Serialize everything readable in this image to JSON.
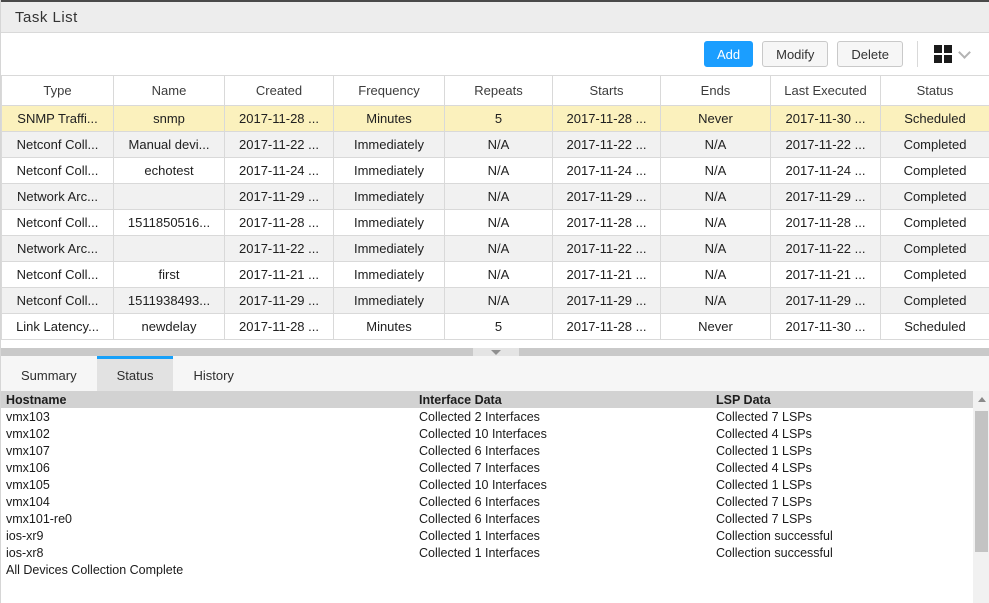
{
  "panel": {
    "title": "Task List"
  },
  "toolbar": {
    "add_label": "Add",
    "modify_label": "Modify",
    "delete_label": "Delete"
  },
  "task_table": {
    "columns": [
      "Type",
      "Name",
      "Created",
      "Frequency",
      "Repeats",
      "Starts",
      "Ends",
      "Last Executed",
      "Status"
    ],
    "rows": [
      {
        "selected": true,
        "cells": [
          "SNMP Traffi...",
          "snmp",
          "2017-11-28 ...",
          "Minutes",
          "5",
          "2017-11-28 ...",
          "Never",
          "2017-11-30 ...",
          "Scheduled"
        ]
      },
      {
        "selected": false,
        "cells": [
          "Netconf Coll...",
          "Manual devi...",
          "2017-11-22 ...",
          "Immediately",
          "N/A",
          "2017-11-22 ...",
          "N/A",
          "2017-11-22 ...",
          "Completed"
        ]
      },
      {
        "selected": false,
        "cells": [
          "Netconf Coll...",
          "echotest",
          "2017-11-24 ...",
          "Immediately",
          "N/A",
          "2017-11-24 ...",
          "N/A",
          "2017-11-24 ...",
          "Completed"
        ]
      },
      {
        "selected": false,
        "cells": [
          "Network Arc...",
          "",
          "2017-11-29 ...",
          "Immediately",
          "N/A",
          "2017-11-29 ...",
          "N/A",
          "2017-11-29 ...",
          "Completed"
        ]
      },
      {
        "selected": false,
        "cells": [
          "Netconf Coll...",
          "1511850516...",
          "2017-11-28 ...",
          "Immediately",
          "N/A",
          "2017-11-28 ...",
          "N/A",
          "2017-11-28 ...",
          "Completed"
        ]
      },
      {
        "selected": false,
        "cells": [
          "Network Arc...",
          "",
          "2017-11-22 ...",
          "Immediately",
          "N/A",
          "2017-11-22 ...",
          "N/A",
          "2017-11-22 ...",
          "Completed"
        ]
      },
      {
        "selected": false,
        "cells": [
          "Netconf Coll...",
          "first",
          "2017-11-21 ...",
          "Immediately",
          "N/A",
          "2017-11-21 ...",
          "N/A",
          "2017-11-21 ...",
          "Completed"
        ]
      },
      {
        "selected": false,
        "cells": [
          "Netconf Coll...",
          "1511938493...",
          "2017-11-29 ...",
          "Immediately",
          "N/A",
          "2017-11-29 ...",
          "N/A",
          "2017-11-29 ...",
          "Completed"
        ]
      },
      {
        "selected": false,
        "cells": [
          "Link Latency...",
          "newdelay",
          "2017-11-28 ...",
          "Minutes",
          "5",
          "2017-11-28 ...",
          "Never",
          "2017-11-30 ...",
          "Scheduled"
        ]
      }
    ]
  },
  "tabs": [
    {
      "label": "Summary",
      "active": false
    },
    {
      "label": "Status",
      "active": true
    },
    {
      "label": "History",
      "active": false
    }
  ],
  "status_panel": {
    "columns": [
      "Hostname",
      "Interface Data",
      "LSP Data"
    ],
    "rows": [
      [
        "vmx103",
        "Collected 2 Interfaces",
        "Collected 7 LSPs"
      ],
      [
        "vmx102",
        "Collected 10 Interfaces",
        "Collected 4 LSPs"
      ],
      [
        "vmx107",
        "Collected 6 Interfaces",
        "Collected 1 LSPs"
      ],
      [
        "vmx106",
        "Collected 7 Interfaces",
        "Collected 4 LSPs"
      ],
      [
        "vmx105",
        "Collected 10 Interfaces",
        "Collected 1 LSPs"
      ],
      [
        "vmx104",
        "Collected 6 Interfaces",
        "Collected 7 LSPs"
      ],
      [
        "vmx101-re0",
        "Collected 6 Interfaces",
        "Collected 7 LSPs"
      ],
      [
        "ios-xr9",
        "Collected 1 Interfaces",
        "Collection successful"
      ],
      [
        "ios-xr8",
        "Collected 1 Interfaces",
        "Collection successful"
      ]
    ],
    "footer": "All Devices Collection Complete"
  },
  "colors": {
    "accent_blue": "#1b9eff",
    "selected_row": "#fbf1bd",
    "row_stripe": "#f1f1f1",
    "header_gray": "#d2d2d2"
  },
  "icons": {
    "layout_menu": "grid-icon",
    "layout_menu_chevron": "chevron-down-icon",
    "splitter_collapse": "chevron-down-icon",
    "scroll_up": "triangle-up-icon"
  }
}
